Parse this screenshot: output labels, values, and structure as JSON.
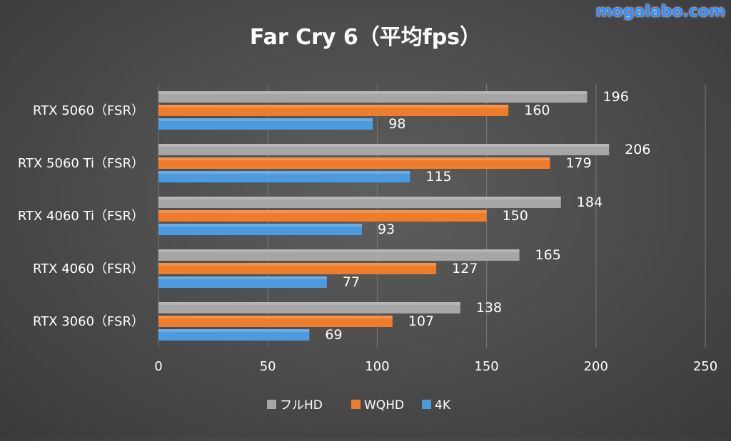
{
  "watermark": "mogalabo.com",
  "chart_data": {
    "type": "bar",
    "orientation": "horizontal",
    "title": "Far Cry 6（平均fps）",
    "categories": [
      "RTX 5060（FSR）",
      "RTX 5060 Ti（FSR）",
      "RTX 4060 Ti（FSR）",
      "RTX 4060（FSR）",
      "RTX 3060（FSR）"
    ],
    "series": [
      {
        "name": "フルHD",
        "color": "#a6a6a6",
        "values": [
          196,
          206,
          184,
          165,
          138
        ]
      },
      {
        "name": "WQHD",
        "color": "#f07c2a",
        "values": [
          160,
          179,
          150,
          127,
          107
        ]
      },
      {
        "name": "4K",
        "color": "#4a9be0",
        "values": [
          98,
          115,
          93,
          77,
          69
        ]
      }
    ],
    "xlim": [
      0,
      250
    ],
    "xticks": [
      0,
      50,
      100,
      150,
      200,
      250
    ],
    "grid": "vertical",
    "legend": "bottom",
    "data_labels": true
  }
}
